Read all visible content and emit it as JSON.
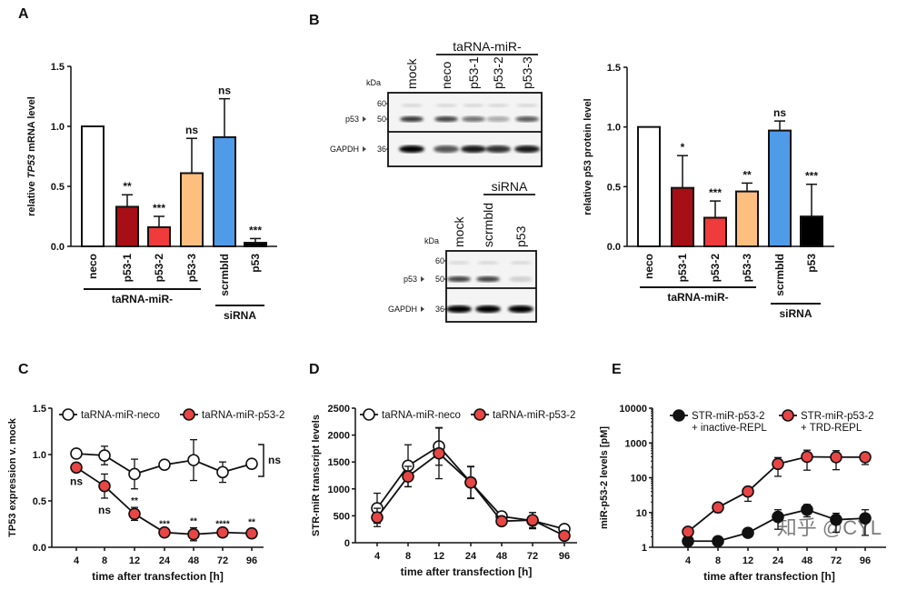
{
  "panel_letters": [
    "A",
    "B",
    "C",
    "D",
    "E"
  ],
  "watermark": "知乎 @CYL",
  "chart_data": [
    {
      "id": "A",
      "type": "bar",
      "ylabel_prefix": "relative ",
      "ylabel_italic": "TP53",
      "ylabel_suffix": " mRNA level",
      "ylim": [
        0,
        1.5
      ],
      "yticks": [
        "0.0",
        "0.5",
        "1.0",
        "1.5"
      ],
      "categories": [
        "neco",
        "p53-1",
        "p53-2",
        "p53-3",
        "scrmbld",
        "p53"
      ],
      "values": [
        1.0,
        0.33,
        0.16,
        0.61,
        0.91,
        0.03
      ],
      "errors": [
        0,
        0.1,
        0.09,
        0.29,
        0.32,
        0.035
      ],
      "significance": [
        "",
        "**",
        "***",
        "ns",
        "ns",
        "***"
      ],
      "colors": [
        "#ffffff",
        "#a50f15",
        "#ef3b3b",
        "#fdbf7f",
        "#4f9be8",
        "#000000"
      ],
      "groups": [
        {
          "label": "taRNA-miR-",
          "members": [
            0,
            3
          ]
        },
        {
          "label": "siRNA",
          "members": [
            4,
            5
          ]
        }
      ]
    },
    {
      "id": "B",
      "type": "bar",
      "ylabel": "relative p53 protein level",
      "ylim": [
        0,
        1.5
      ],
      "yticks": [
        "0.0",
        "0.5",
        "1.0",
        "1.5"
      ],
      "categories": [
        "neco",
        "p53-1",
        "p53-2",
        "p53-3",
        "scrmbld",
        "p53"
      ],
      "values": [
        1.0,
        0.49,
        0.24,
        0.46,
        0.97,
        0.25
      ],
      "errors": [
        0,
        0.27,
        0.14,
        0.07,
        0.08,
        0.27
      ],
      "significance": [
        "",
        "*",
        "***",
        "**",
        "ns",
        "***"
      ],
      "colors": [
        "#ffffff",
        "#a50f15",
        "#ef3b3b",
        "#fdbf7f",
        "#4f9be8",
        "#000000"
      ],
      "groups": [
        {
          "label": "taRNA-miR-",
          "members": [
            0,
            3
          ]
        },
        {
          "label": "siRNA",
          "members": [
            4,
            5
          ]
        }
      ]
    },
    {
      "id": "C",
      "type": "line",
      "ylabel": "TP53 expression v. mock",
      "xlabel": "time after transfection [h]",
      "categories": [
        "4",
        "8",
        "12",
        "24",
        "48",
        "72",
        "96"
      ],
      "ylim": [
        0,
        1.5
      ],
      "yticks": [
        "0.0",
        "0.5",
        "1.0",
        "1.5"
      ],
      "series": [
        {
          "name": "taRNA-miR-neco",
          "values": [
            1.01,
            0.99,
            0.79,
            0.89,
            0.94,
            0.81,
            0.9
          ],
          "errors": [
            0.0,
            0.1,
            0.16,
            0.05,
            0.22,
            0.11,
            0.05
          ],
          "fill": "#ffffff"
        },
        {
          "name": "taRNA-miR-p53-2",
          "values": [
            0.86,
            0.66,
            0.36,
            0.16,
            0.14,
            0.16,
            0.15
          ],
          "errors": [
            0.02,
            0.13,
            0.07,
            0.02,
            0.07,
            0.02,
            0.05
          ],
          "fill": "#e84545"
        }
      ],
      "annotations": [
        "ns",
        "ns",
        "**",
        "***",
        "**",
        "****",
        "**"
      ],
      "bracket_label": "ns"
    },
    {
      "id": "D",
      "type": "line",
      "ylabel": "STR-miR transcript levels",
      "xlabel": "time after transfection [h]",
      "categories": [
        "4",
        "8",
        "12",
        "24",
        "48",
        "72",
        "96"
      ],
      "ylim": [
        0,
        2500
      ],
      "yticks": [
        "0",
        "500",
        "1000",
        "1500",
        "2000",
        "2500"
      ],
      "series": [
        {
          "name": "taRNA-miR-neco",
          "values": [
            640,
            1430,
            1790,
            1120,
            490,
            410,
            255
          ],
          "errors": [
            280,
            390,
            350,
            290,
            20,
            150,
            20
          ],
          "fill": "#ffffff"
        },
        {
          "name": "taRNA-miR-p53-2",
          "values": [
            470,
            1230,
            1660,
            1120,
            400,
            420,
            130
          ],
          "errors": [
            170,
            190,
            470,
            300,
            20,
            140,
            20
          ],
          "fill": "#e84545"
        }
      ]
    },
    {
      "id": "E",
      "type": "line",
      "yscale": "log",
      "ylabel": "miR-p53-2 levels [pM]",
      "xlabel": "time after transfection [h]",
      "categories": [
        "4",
        "8",
        "12",
        "24",
        "48",
        "72",
        "96"
      ],
      "ylim": [
        1,
        10000
      ],
      "yticks": [
        "1",
        "10",
        "100",
        "1000",
        "10000"
      ],
      "series": [
        {
          "name": "STR-miR-p53-2",
          "name2": "+ inactive-REPL",
          "values": [
            1.5,
            1.5,
            2.6,
            7.5,
            12,
            6.2,
            6.8
          ],
          "err_hi": [
            1.6,
            1.6,
            2.9,
            12,
            17,
            9.5,
            12
          ],
          "err_lo": [
            1.2,
            1.2,
            2.3,
            3.3,
            7.5,
            2.7,
            2.2
          ],
          "fill": "#111111"
        },
        {
          "name": "STR-miR-p53-2",
          "name2": "+ TRD-REPL",
          "values": [
            2.8,
            14,
            40,
            250,
            400,
            390,
            390
          ],
          "err_hi": [
            3.1,
            17,
            55,
            380,
            620,
            600,
            520
          ],
          "err_lo": [
            2.5,
            10,
            21,
            110,
            165,
            170,
            240
          ],
          "fill": "#e84545"
        }
      ]
    }
  ],
  "blots": [
    {
      "group_label": "taRNA-miR-",
      "lanes": [
        "mock",
        "neco",
        "p53-1",
        "p53-2",
        "p53-3"
      ],
      "kda_label": "kDa",
      "markers": [
        "60",
        "50",
        "36"
      ],
      "bands": [
        "p53",
        "GAPDH"
      ],
      "p53_intensity": [
        0.8,
        0.75,
        0.55,
        0.3,
        0.65
      ],
      "gapdh_intensity": [
        1.0,
        0.65,
        0.9,
        0.8,
        0.9
      ]
    },
    {
      "group_label": "siRNA",
      "lanes": [
        "mock",
        "scrmbld",
        "p53"
      ],
      "kda_label": "kDa",
      "markers": [
        "60",
        "50",
        "36"
      ],
      "bands": [
        "p53",
        "GAPDH"
      ],
      "p53_intensity": [
        0.75,
        0.75,
        0.15
      ],
      "gapdh_intensity": [
        1.0,
        1.0,
        1.0
      ]
    }
  ]
}
